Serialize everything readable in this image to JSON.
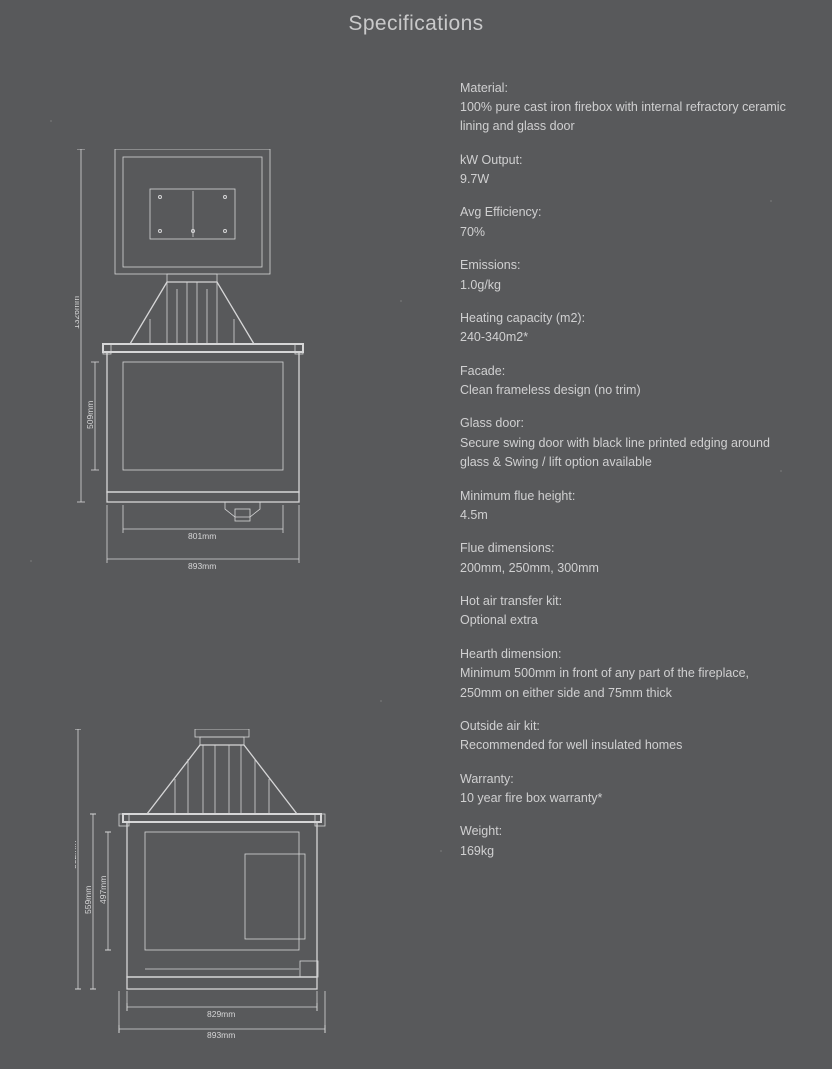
{
  "title": "Specifications",
  "colors": {
    "bg": "#58595b",
    "text": "#d6d6d7",
    "line": "#d6d6d7"
  },
  "specs": [
    {
      "label": "Material:",
      "value": "100% pure cast iron firebox with internal refractory ceramic lining and glass door"
    },
    {
      "label": "kW Output:",
      "value": "9.7W"
    },
    {
      "label": "Avg Efficiency:",
      "value": "70%"
    },
    {
      "label": "Emissions:",
      "value": "1.0g/kg"
    },
    {
      "label": "Heating capacity (m2):",
      "value": "240-340m2*"
    },
    {
      "label": "Facade:",
      "value": "Clean frameless design (no trim)"
    },
    {
      "label": "Glass door:",
      "value": "Secure swing door with black line printed edging around glass & Swing / lift option available"
    },
    {
      "label": "Minimum flue height:",
      "value": "4.5m"
    },
    {
      "label": "Flue dimensions:",
      "value": "200mm, 250mm, 300mm"
    },
    {
      "label": "Hot air transfer kit:",
      "value": "Optional extra"
    },
    {
      "label": "Hearth dimension:",
      "value": "Minimum 500mm in front of any part of the fireplace, 250mm on either side and 75mm thick"
    },
    {
      "label": "Outside air kit:",
      "value": "Recommended for well insulated homes"
    },
    {
      "label": "Warranty:",
      "value": "10 year fire box warranty*"
    },
    {
      "label": "Weight:",
      "value": "169kg"
    }
  ],
  "diagram1": {
    "kind": "technical-drawing-front-with-upper-panel",
    "dims": {
      "total_height_mm": "1326mm",
      "window_height_mm": "509mm",
      "inner_width_mm": "801mm",
      "outer_width_mm": "893mm"
    },
    "line_color": "#d6d6d7",
    "font_size_pt": 8.5
  },
  "diagram2": {
    "kind": "technical-drawing-front-lower",
    "dims": {
      "height_outer_mm": "832mm",
      "height_mid_mm": "559mm",
      "height_inner_mm": "497mm",
      "width_inner_mm": "829mm",
      "width_outer_mm": "893mm"
    },
    "line_color": "#d6d6d7",
    "font_size_pt": 8.5
  }
}
